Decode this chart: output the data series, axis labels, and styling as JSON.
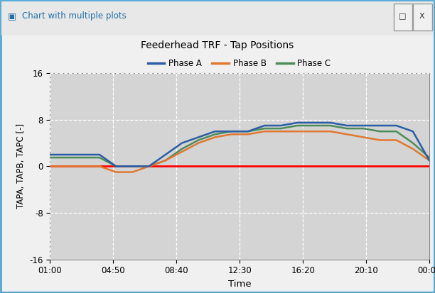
{
  "title": "Feederhead TRF - Tap Positions",
  "xlabel": "Time",
  "ylabel": "TAPA, TAPB, TAPC [-]",
  "xlim": [
    0,
    23
  ],
  "ylim": [
    -16,
    16
  ],
  "yticks": [
    -16,
    -8,
    0,
    8,
    16
  ],
  "xtick_labels": [
    "01:00",
    "04:50",
    "08:40",
    "12:30",
    "16:20",
    "20:10",
    "00:00"
  ],
  "xtick_positions": [
    0,
    3.833,
    7.667,
    11.5,
    15.333,
    19.167,
    23
  ],
  "plot_bg_color": "#d4d4d4",
  "window_bg_color": "#f0f0f0",
  "titlebar_bg_color": "#e8e8e8",
  "titlebar_border_color": "#4da6d5",
  "phase_a_color": "#2b5da6",
  "phase_b_color": "#e07830",
  "phase_c_color": "#4d8c5a",
  "zero_line_color": "#ff0000",
  "grid_color": "#ffffff",
  "legend_labels": [
    "Phase A",
    "Phase B",
    "Phase C"
  ],
  "time_x": [
    0,
    1,
    2,
    3,
    4,
    5,
    6,
    7,
    8,
    9,
    10,
    11,
    12,
    13,
    14,
    15,
    16,
    17,
    18,
    19,
    20,
    21,
    22,
    23
  ],
  "phase_a": [
    2,
    2,
    2,
    2,
    0,
    0,
    0,
    2,
    4,
    5,
    6,
    6,
    6,
    7,
    7,
    7.5,
    7.5,
    7.5,
    7,
    7,
    7,
    7,
    6,
    1
  ],
  "phase_b": [
    0,
    0,
    0,
    0,
    -1,
    -1,
    0,
    1,
    2.5,
    4,
    5,
    5.5,
    5.5,
    6,
    6,
    6,
    6,
    6,
    5.5,
    5,
    4.5,
    4.5,
    3,
    1
  ],
  "phase_c": [
    1.5,
    1.5,
    1.5,
    1.5,
    0,
    0,
    0,
    1,
    3,
    4.5,
    5.5,
    6,
    6,
    6.5,
    6.5,
    7,
    7,
    7,
    6.5,
    6.5,
    6,
    6,
    4,
    1.5
  ]
}
